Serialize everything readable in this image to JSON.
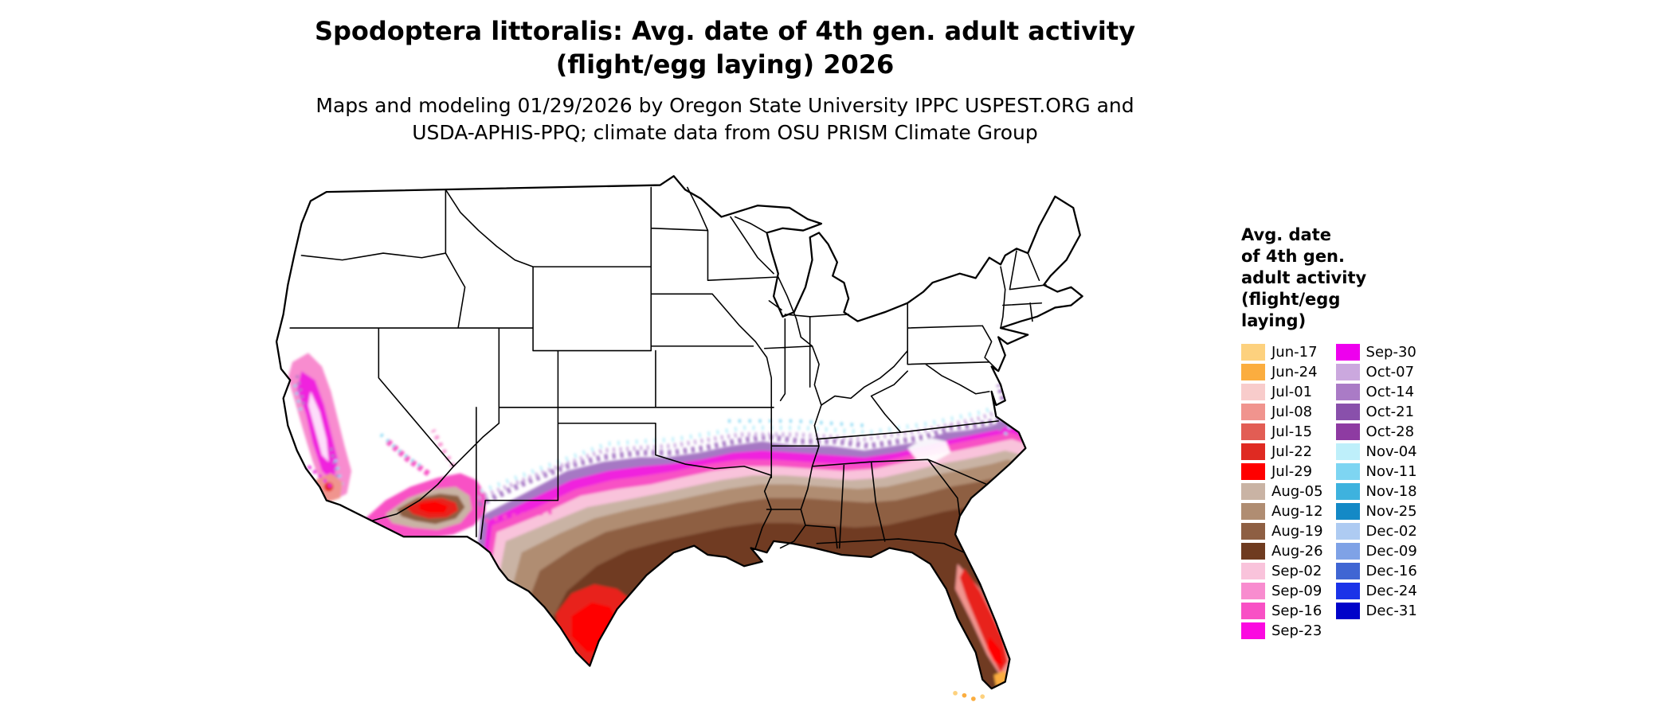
{
  "title": {
    "line1": "Spodoptera littoralis: Avg. date of 4th gen. adult activity",
    "line2": "(flight/egg laying) 2026"
  },
  "subtitle": {
    "line1": "Maps and modeling 01/29/2026 by Oregon State University IPPC USPEST.ORG and",
    "line2": "USDA-APHIS-PPQ; climate data from OSU PRISM Climate Group"
  },
  "legend": {
    "title_lines": [
      "Avg. date",
      "of 4th gen.",
      "adult activity",
      "(flight/egg",
      "laying)"
    ],
    "column1": [
      {
        "label": "Jun-17",
        "color": "#FDD17E"
      },
      {
        "label": "Jun-24",
        "color": "#FBAD3F"
      },
      {
        "label": "Jul-01",
        "color": "#F8CCCB"
      },
      {
        "label": "Jul-08",
        "color": "#F0948E"
      },
      {
        "label": "Jul-15",
        "color": "#E25D54"
      },
      {
        "label": "Jul-22",
        "color": "#DF2A22"
      },
      {
        "label": "Jul-29",
        "color": "#FF0000"
      },
      {
        "label": "Aug-05",
        "color": "#C9B3A4"
      },
      {
        "label": "Aug-12",
        "color": "#B08D72"
      },
      {
        "label": "Aug-19",
        "color": "#8E5F43"
      },
      {
        "label": "Aug-26",
        "color": "#6F3B20"
      },
      {
        "label": "Sep-02",
        "color": "#F9C3DB"
      },
      {
        "label": "Sep-09",
        "color": "#F88CCF"
      },
      {
        "label": "Sep-16",
        "color": "#F851C5"
      },
      {
        "label": "Sep-23",
        "color": "#FB09E0"
      }
    ],
    "column2": [
      {
        "label": "Sep-30",
        "color": "#EE00EE"
      },
      {
        "label": "Oct-07",
        "color": "#CBA8DE"
      },
      {
        "label": "Oct-14",
        "color": "#AA7BC6"
      },
      {
        "label": "Oct-21",
        "color": "#8950AB"
      },
      {
        "label": "Oct-28",
        "color": "#8E3BA2"
      },
      {
        "label": "Nov-04",
        "color": "#BEEFFA"
      },
      {
        "label": "Nov-11",
        "color": "#7ED5F2"
      },
      {
        "label": "Nov-18",
        "color": "#3EB2DE"
      },
      {
        "label": "Nov-25",
        "color": "#1489C6"
      },
      {
        "label": "Dec-02",
        "color": "#AECBF2"
      },
      {
        "label": "Dec-09",
        "color": "#7FA2E6"
      },
      {
        "label": "Dec-16",
        "color": "#4066D3"
      },
      {
        "label": "Dec-24",
        "color": "#1B33E8"
      },
      {
        "label": "Dec-31",
        "color": "#0003C9"
      }
    ]
  },
  "chart_data": {
    "type": "heatmap",
    "title": "Spodoptera littoralis: Avg. date of 4th gen. adult activity (flight/egg laying) 2026",
    "region": "Continental United States",
    "legend_title": "Avg. date of 4th gen. adult activity (flight/egg laying)",
    "classes": [
      "Jun-17",
      "Jun-24",
      "Jul-01",
      "Jul-08",
      "Jul-15",
      "Jul-22",
      "Jul-29",
      "Aug-05",
      "Aug-12",
      "Aug-19",
      "Aug-26",
      "Sep-02",
      "Sep-09",
      "Sep-16",
      "Sep-23",
      "Sep-30",
      "Oct-07",
      "Oct-14",
      "Oct-21",
      "Oct-28",
      "Nov-04",
      "Nov-11",
      "Nov-18",
      "Nov-25",
      "Dec-02",
      "Dec-09",
      "Dec-16",
      "Dec-24",
      "Dec-31"
    ],
    "pattern_notes": "Earliest dates (Jun-Jul, orange/red) in far south Texas, southern Florida and southern Arizona; Aug browns across the Gulf states and central Texas; Sep pinks/magentas across the mid-South and Carolinas and California valleys; Oct purples and Nov-Dec blues as sparse northern fringe; northern two-thirds of the US has no activity (white)."
  }
}
